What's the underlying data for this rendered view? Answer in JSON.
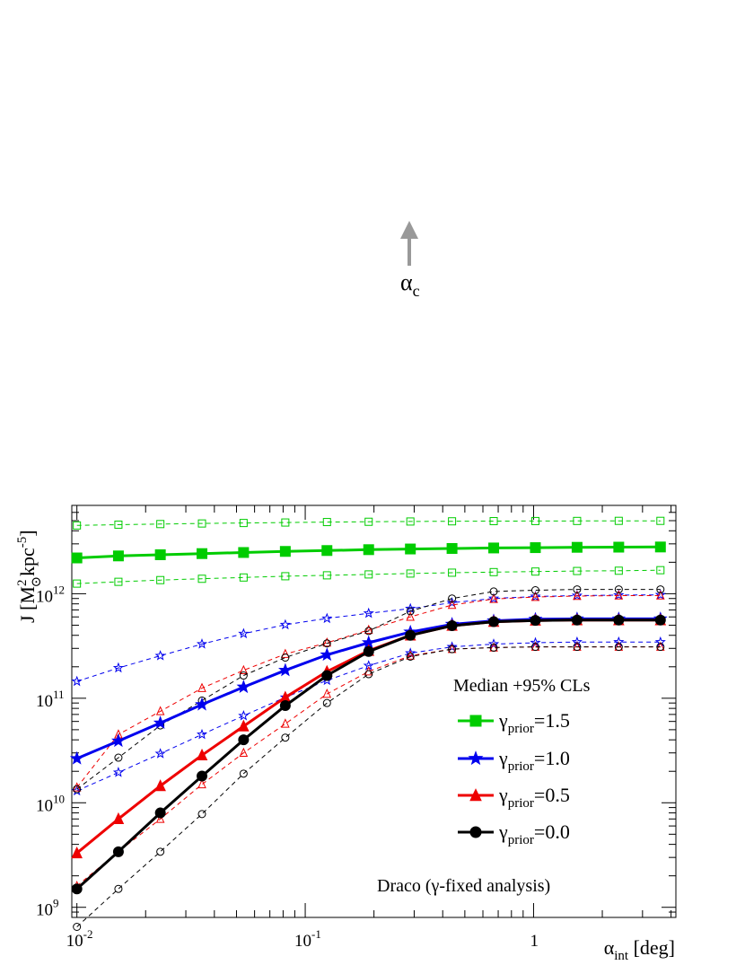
{
  "chart_data": {
    "type": "line",
    "title": "",
    "xlabel": {
      "main": "α",
      "sub": "int",
      "unit": " [deg]"
    },
    "ylabel": {
      "main": "J  [M",
      "sup": "2",
      "sub": "⊙",
      "rest": "kpc",
      "rest_sup": "-5",
      "close": "]"
    },
    "x_scale": "log",
    "y_scale": "log",
    "xlim": [
      0.0095,
      4.2
    ],
    "ylim": [
      800000000,
      7000000000000
    ],
    "x_ticks": [
      {
        "value": 0.01,
        "base": "10",
        "exp": "-2"
      },
      {
        "value": 0.1,
        "base": "10",
        "exp": "-1"
      },
      {
        "value": 1,
        "base": "1",
        "exp": ""
      }
    ],
    "y_ticks": [
      {
        "value": 1000000000,
        "base": "10",
        "exp": "9"
      },
      {
        "value": 10000000000,
        "base": "10",
        "exp": "10"
      },
      {
        "value": 100000000000,
        "base": "10",
        "exp": "11"
      },
      {
        "value": 1000000000000,
        "base": "10",
        "exp": "12"
      }
    ],
    "grid": false,
    "legend_title": "Median +95% CLs",
    "legend_position": "right",
    "x": [
      0.01,
      0.0152,
      0.0232,
      0.0353,
      0.0537,
      0.0818,
      0.1245,
      0.1896,
      0.2887,
      0.4394,
      0.669,
      1.0185,
      1.5506,
      2.3607,
      3.594
    ],
    "series": [
      {
        "name_base": "γ",
        "name_sub": "prior",
        "name_value": "=1.5",
        "color": "#00cc00",
        "marker": "square",
        "median": [
          2200000000000.0,
          2300000000000.0,
          2360000000000.0,
          2420000000000.0,
          2480000000000.0,
          2540000000000.0,
          2590000000000.0,
          2640000000000.0,
          2680000000000.0,
          2710000000000.0,
          2740000000000.0,
          2760000000000.0,
          2780000000000.0,
          2790000000000.0,
          2800000000000.0
        ],
        "upper": [
          4500000000000.0,
          4580000000000.0,
          4640000000000.0,
          4700000000000.0,
          4750000000000.0,
          4800000000000.0,
          4850000000000.0,
          4880000000000.0,
          4910000000000.0,
          4930000000000.0,
          4950000000000.0,
          4960000000000.0,
          4970000000000.0,
          4980000000000.0,
          4980000000000.0
        ],
        "lower": [
          1250000000000.0,
          1300000000000.0,
          1350000000000.0,
          1390000000000.0,
          1430000000000.0,
          1470000000000.0,
          1500000000000.0,
          1530000000000.0,
          1560000000000.0,
          1590000000000.0,
          1610000000000.0,
          1630000000000.0,
          1650000000000.0,
          1660000000000.0,
          1680000000000.0
        ]
      },
      {
        "name_base": "γ",
        "name_sub": "prior",
        "name_value": "=1.0",
        "color": "#0000ee",
        "marker": "star",
        "median": [
          26500000000.0,
          39000000000.0,
          58000000000.0,
          87000000000.0,
          128000000000.0,
          185000000000.0,
          260000000000.0,
          340000000000.0,
          430000000000.0,
          510000000000.0,
          550000000000.0,
          570000000000.0,
          575000000000.0,
          575000000000.0,
          575000000000.0
        ],
        "upper": [
          145000000000.0,
          195000000000.0,
          255000000000.0,
          330000000000.0,
          415000000000.0,
          505000000000.0,
          580000000000.0,
          650000000000.0,
          720000000000.0,
          820000000000.0,
          900000000000.0,
          940000000000.0,
          960000000000.0,
          970000000000.0,
          975000000000.0
        ],
        "lower": [
          13000000000.0,
          19500000000.0,
          29500000000.0,
          45000000000.0,
          68000000000.0,
          102000000000.0,
          148000000000.0,
          205000000000.0,
          270000000000.0,
          310000000000.0,
          330000000000.0,
          340000000000.0,
          345000000000.0,
          345000000000.0,
          345000000000.0
        ]
      },
      {
        "name_base": "γ",
        "name_sub": "prior",
        "name_value": "=0.5",
        "color": "#ee0000",
        "marker": "triangle",
        "median": [
          3300000000.0,
          7000000000.0,
          14500000000.0,
          28500000000.0,
          54000000000.0,
          102000000000.0,
          180000000000.0,
          285000000000.0,
          400000000000.0,
          495000000000.0,
          540000000000.0,
          555000000000.0,
          560000000000.0,
          560000000000.0,
          560000000000.0
        ],
        "upper": [
          14000000000.0,
          45000000000.0,
          75000000000.0,
          125000000000.0,
          185000000000.0,
          265000000000.0,
          340000000000.0,
          450000000000.0,
          600000000000.0,
          780000000000.0,
          890000000000.0,
          930000000000.0,
          950000000000.0,
          960000000000.0,
          960000000000.0
        ],
        "lower": [
          1600000000.0,
          3400000000.0,
          7000000000.0,
          15000000000.0,
          30000000000.0,
          57000000000.0,
          110000000000.0,
          180000000000.0,
          255000000000.0,
          295000000000.0,
          305000000000.0,
          310000000000.0,
          310000000000.0,
          310000000000.0,
          310000000000.0
        ]
      },
      {
        "name_base": "γ",
        "name_sub": "prior",
        "name_value": "=0.0",
        "color": "#000000",
        "marker": "circle",
        "median": [
          1500000000.0,
          3400000000.0,
          8000000000.0,
          18000000000.0,
          40000000000.0,
          85000000000.0,
          165000000000.0,
          280000000000.0,
          400000000000.0,
          495000000000.0,
          540000000000.0,
          555000000000.0,
          560000000000.0,
          560000000000.0,
          560000000000.0
        ],
        "upper": [
          13500000000.0,
          27000000000.0,
          55000000000.0,
          95000000000.0,
          165000000000.0,
          245000000000.0,
          335000000000.0,
          440000000000.0,
          680000000000.0,
          900000000000.0,
          1050000000000.0,
          1080000000000.0,
          1100000000000.0,
          1100000000000.0,
          1100000000000.0
        ],
        "lower": [
          650000000.0,
          1500000000.0,
          3400000000.0,
          7800000000.0,
          19000000000.0,
          42000000000.0,
          90000000000.0,
          170000000000.0,
          250000000000.0,
          295000000000.0,
          305000000000.0,
          310000000000.0,
          310000000000.0,
          310000000000.0,
          310000000000.0
        ]
      }
    ],
    "annotations": {
      "alpha_c": {
        "main": "α",
        "sub": "c",
        "x": 0.29,
        "color": "#999999"
      },
      "analysis_label": "Draco (γ-fixed analysis)"
    }
  }
}
